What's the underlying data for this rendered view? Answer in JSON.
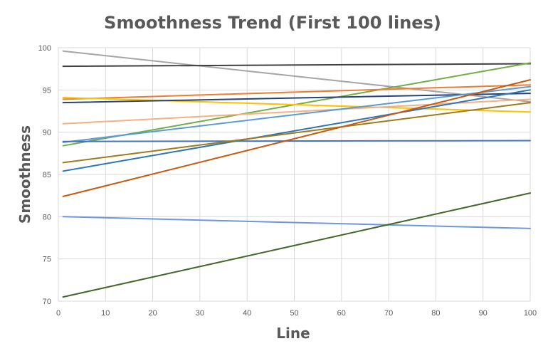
{
  "chart_data": {
    "type": "line",
    "title": "Smoothness Trend (First 100 lines)",
    "xlabel": "Line",
    "ylabel": "Smoothness",
    "xlim": [
      0,
      100
    ],
    "ylim": [
      70,
      100
    ],
    "x_ticks": [
      0,
      10,
      20,
      30,
      40,
      50,
      60,
      70,
      80,
      90,
      100
    ],
    "y_ticks": [
      70,
      75,
      80,
      85,
      90,
      95,
      100
    ],
    "grid": true,
    "legend": "none",
    "series": [
      {
        "color": "#a5a5a5",
        "x": [
          1,
          100
        ],
        "y": [
          99.6,
          93.6
        ]
      },
      {
        "color": "#404040",
        "x": [
          1,
          100
        ],
        "y": [
          97.8,
          98.1
        ]
      },
      {
        "color": "#70ad47",
        "x": [
          1,
          100
        ],
        "y": [
          88.4,
          98.2
        ]
      },
      {
        "color": "#ed7d31",
        "x": [
          1,
          100
        ],
        "y": [
          93.9,
          95.6
        ]
      },
      {
        "color": "#ffc000",
        "x": [
          1,
          100
        ],
        "y": [
          94.1,
          92.4
        ]
      },
      {
        "color": "#264478",
        "x": [
          1,
          100
        ],
        "y": [
          93.5,
          94.6
        ]
      },
      {
        "color": "#f4b183",
        "x": [
          1,
          100
        ],
        "y": [
          91.0,
          93.9
        ]
      },
      {
        "color": "#5b9bd5",
        "x": [
          1,
          100
        ],
        "y": [
          88.8,
          95.4
        ]
      },
      {
        "color": "#4472c4",
        "x": [
          1,
          100
        ],
        "y": [
          88.9,
          89.0
        ]
      },
      {
        "color": "#2e75b6",
        "x": [
          1,
          100
        ],
        "y": [
          85.4,
          95.0
        ]
      },
      {
        "color": "#9e7b1b",
        "x": [
          1,
          100
        ],
        "y": [
          86.4,
          93.5
        ]
      },
      {
        "color": "#c55a11",
        "x": [
          1,
          100
        ],
        "y": [
          82.4,
          96.2
        ]
      },
      {
        "color": "#6f97dc",
        "x": [
          1,
          100
        ],
        "y": [
          80.0,
          78.6
        ]
      },
      {
        "color": "#43682b",
        "x": [
          1,
          100
        ],
        "y": [
          70.5,
          82.8
        ]
      }
    ]
  }
}
